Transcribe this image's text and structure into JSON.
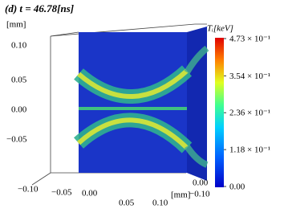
{
  "title": "(d) t = 46.78[ns]",
  "y_axis": {
    "unit": "[mm]",
    "ticks": [
      "0.10",
      "0.05",
      "0.00",
      "−0.05"
    ]
  },
  "x_axis": {
    "unit": "[mm]",
    "ticks": [
      "−0.10",
      "−0.05",
      "0.00",
      "0.05",
      "0.10"
    ]
  },
  "z_axis": {
    "ticks": [
      "0.00",
      "−0.10"
    ]
  },
  "colorbar": {
    "label": "Tᵢ[keV]",
    "lim": [
      0,
      0.473
    ],
    "ticks": [
      {
        "value": 0.473,
        "label": "4.73 × 10⁻¹"
      },
      {
        "value": 0.354,
        "label": "3.54 × 10⁻¹"
      },
      {
        "value": 0.236,
        "label": "2.36 × 10⁻¹"
      },
      {
        "value": 0.118,
        "label": "1.18 × 10⁻¹"
      },
      {
        "value": 0,
        "label": "0.00"
      }
    ]
  }
}
